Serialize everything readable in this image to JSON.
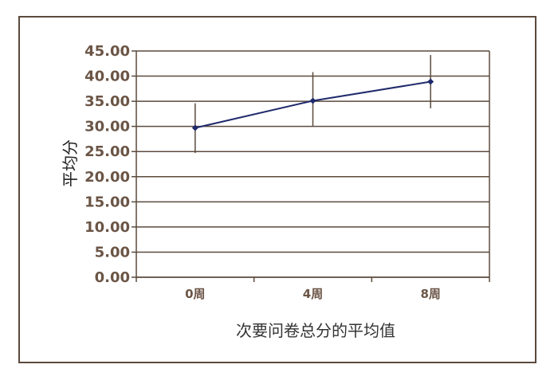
{
  "chart_data": {
    "type": "line",
    "title": "",
    "xlabel": "次要问卷总分的平均值",
    "ylabel": "平均分",
    "categories": [
      "0周",
      "4周",
      "8周"
    ],
    "series": [
      {
        "values": [
          29.7,
          35.1,
          38.9
        ],
        "error_low": [
          24.7,
          30.0,
          33.6
        ],
        "error_high": [
          34.6,
          40.8,
          44.2
        ],
        "color": "#1f2a6b"
      }
    ],
    "ylim": [
      0,
      45
    ],
    "yticks": [
      "0.00",
      "5.00",
      "10.00",
      "15.00",
      "20.00",
      "25.00",
      "30.00",
      "35.00",
      "40.00",
      "45.00"
    ],
    "grid": true
  },
  "colors": {
    "frame": "#5b4a3d",
    "grid": "#5b4a3d",
    "tick_text": "#6b5546",
    "errorbar": "#5b4a3d",
    "line": "#1f2a6b"
  }
}
